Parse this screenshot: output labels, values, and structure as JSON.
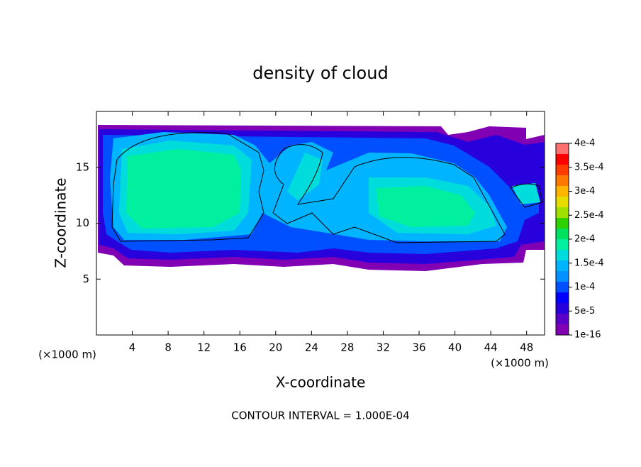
{
  "chart_data": {
    "type": "contour",
    "title": "density of cloud",
    "xlabel": "X-coordinate",
    "ylabel": "Z-coordinate",
    "xunit": "(×1000 m)",
    "yunit": "(×1000 m)",
    "footer": "CONTOUR INTERVAL = 1.000E-04",
    "xlim": [
      0,
      50
    ],
    "xticks": [
      4,
      8,
      12,
      16,
      20,
      24,
      28,
      32,
      36,
      40,
      44,
      48
    ],
    "ylim": [
      0,
      20
    ],
    "yticks": [
      5,
      10,
      15
    ],
    "colorbar": {
      "levels": [
        {
          "value": 1e-16,
          "label": "1e-16"
        },
        {
          "value": 5e-05,
          "label": "5e-5"
        },
        {
          "value": 0.0001,
          "label": "1e-4"
        },
        {
          "value": 0.00015,
          "label": "1.5e-4"
        },
        {
          "value": 0.0002,
          "label": "2e-4"
        },
        {
          "value": 0.00025,
          "label": "2.5e-4"
        },
        {
          "value": 0.0003,
          "label": "3e-4"
        },
        {
          "value": 0.00035,
          "label": "3.5e-4"
        },
        {
          "value": 0.0004,
          "label": "4e-4"
        }
      ],
      "colors": [
        "#8200b4",
        "#5a00c8",
        "#2800dc",
        "#0000ff",
        "#0050ff",
        "#0090ff",
        "#00b4ff",
        "#00dcdc",
        "#00f0a0",
        "#00e060",
        "#30d000",
        "#a0e000",
        "#e6dc00",
        "#ffb400",
        "#ff7800",
        "#ff3c00",
        "#ff0000",
        "#ff7070"
      ]
    }
  }
}
